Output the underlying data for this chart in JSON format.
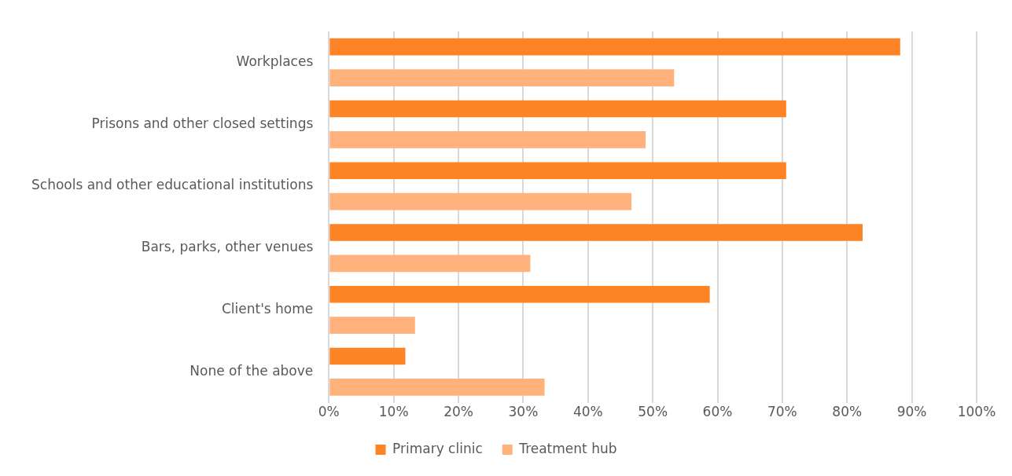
{
  "chart_data": {
    "type": "bar",
    "orientation": "horizontal",
    "categories": [
      "Workplaces",
      "Prisons and other closed settings",
      "Schools and other educational institutions",
      "Bars, parks, other venues",
      "Client's home",
      "None of the above"
    ],
    "series": [
      {
        "name": "Primary clinic",
        "color": "#fe8325",
        "values": [
          88.2,
          70.6,
          70.6,
          82.4,
          58.8,
          11.8
        ]
      },
      {
        "name": "Treatment hub",
        "color": "#ffb27c",
        "values": [
          53.3,
          48.9,
          46.7,
          31.1,
          13.3,
          33.3
        ]
      }
    ],
    "xlim": [
      0,
      100
    ],
    "xticks": [
      {
        "value": 0,
        "label": "0%"
      },
      {
        "value": 10,
        "label": "10%"
      },
      {
        "value": 20,
        "label": "20%"
      },
      {
        "value": 30,
        "label": "30%"
      },
      {
        "value": 40,
        "label": "40%"
      },
      {
        "value": 50,
        "label": "50%"
      },
      {
        "value": 60,
        "label": "60%"
      },
      {
        "value": 70,
        "label": "70%"
      },
      {
        "value": 80,
        "label": "80%"
      },
      {
        "value": 90,
        "label": "90%"
      },
      {
        "value": 100,
        "label": "100%"
      }
    ],
    "grid": "x",
    "legend": "bottom"
  }
}
